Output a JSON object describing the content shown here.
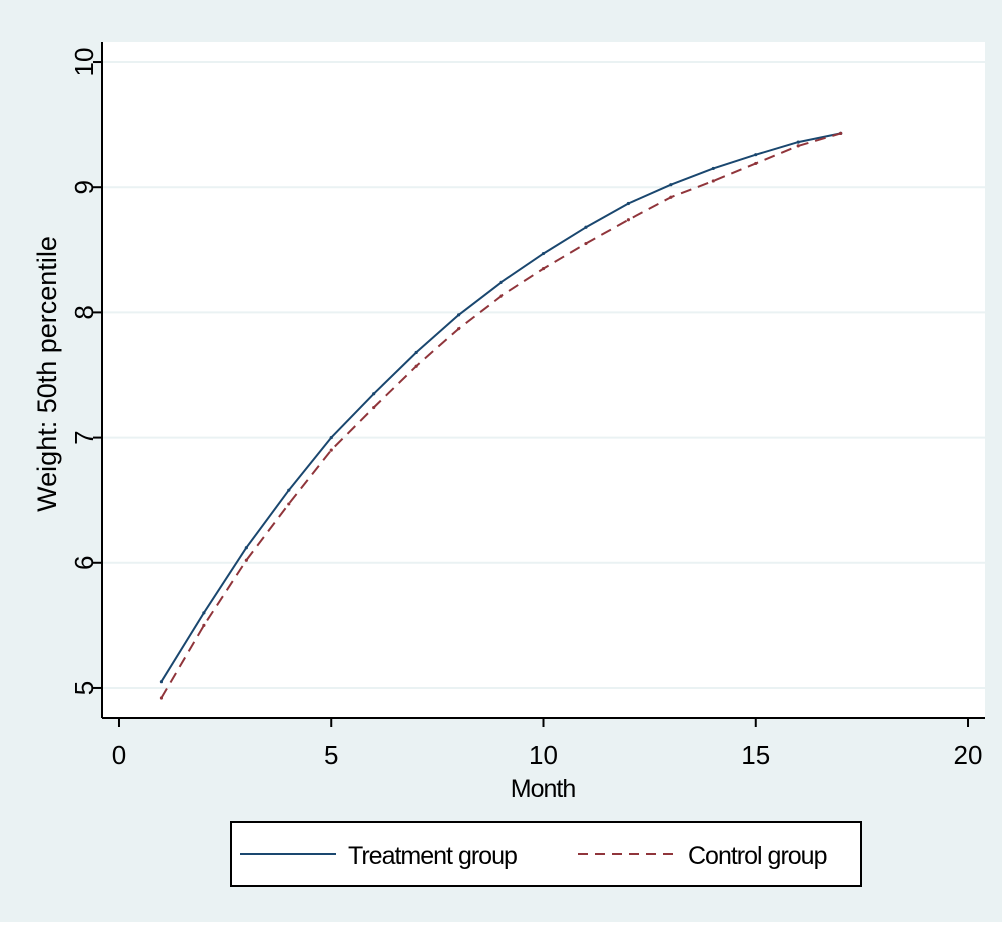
{
  "colors": {
    "outer_background": "#eaf2f3",
    "plot_background": "#ffffff",
    "gridline": "#eaf2f3",
    "axis": "#000000",
    "treatment": "#1a476f",
    "control": "#90353b"
  },
  "chart_data": {
    "type": "line",
    "title": "",
    "xlabel": "Month",
    "ylabel": "Weight: 50th percentile",
    "xlim": [
      -0.4,
      20.4
    ],
    "ylim": [
      4.76,
      10.16
    ],
    "xticks": [
      0,
      5,
      10,
      15,
      20
    ],
    "yticks": [
      5,
      6,
      7,
      8,
      9,
      10
    ],
    "grid": "horizontal",
    "legend_position": "bottom",
    "series": [
      {
        "name": "Treatment group",
        "style": "solid",
        "x": [
          1,
          2,
          3,
          4,
          5,
          6,
          7,
          8,
          9,
          10,
          11,
          12,
          13,
          14,
          15,
          16,
          17
        ],
        "y": [
          5.05,
          5.6,
          6.12,
          6.58,
          7.0,
          7.35,
          7.68,
          7.98,
          8.24,
          8.47,
          8.68,
          8.87,
          9.02,
          9.15,
          9.26,
          9.36,
          9.43
        ]
      },
      {
        "name": "Control group",
        "style": "dashed",
        "x": [
          1,
          2,
          3,
          4,
          5,
          6,
          7,
          8,
          9,
          10,
          11,
          12,
          13,
          14,
          15,
          16,
          17
        ],
        "y": [
          4.92,
          5.5,
          6.02,
          6.47,
          6.9,
          7.24,
          7.57,
          7.87,
          8.13,
          8.35,
          8.55,
          8.74,
          8.92,
          9.05,
          9.19,
          9.33,
          9.43
        ]
      }
    ]
  }
}
